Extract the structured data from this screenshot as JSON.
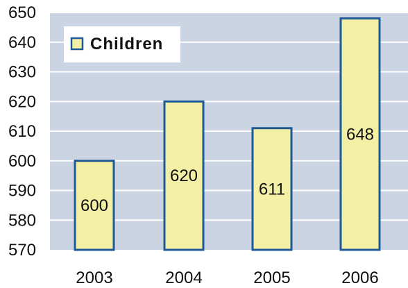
{
  "chart_data": {
    "type": "bar",
    "categories": [
      "2003",
      "2004",
      "2005",
      "2006"
    ],
    "series": [
      {
        "name": "Children",
        "values": [
          600,
          620,
          611,
          648
        ]
      }
    ],
    "data_labels": [
      "600",
      "620",
      "611",
      "648"
    ],
    "y_ticks": [
      "570",
      "580",
      "590",
      "600",
      "610",
      "620",
      "630",
      "640",
      "650"
    ],
    "ylim": [
      570,
      650
    ],
    "xlabel": "",
    "ylabel": "",
    "title": "",
    "grid": true,
    "legend": {
      "position": "top-left",
      "label": "Children"
    },
    "colors": {
      "plot_bg": "#cad4e2",
      "bar_fill": "#f3f0a6",
      "bar_stroke": "#1f5a96",
      "grid": "#ffffff",
      "legend_bg": "#ffffff",
      "text": "#111111"
    }
  }
}
